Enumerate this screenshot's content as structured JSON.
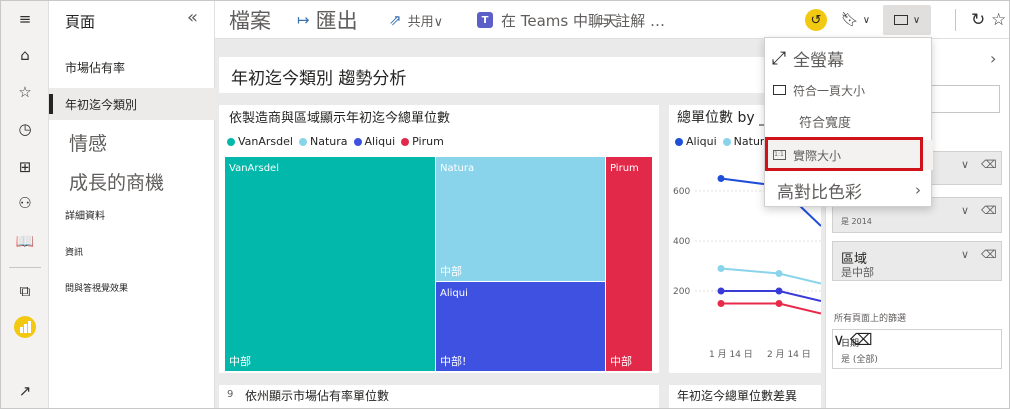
{
  "pages_pane": {
    "title": "頁面",
    "items": [
      {
        "label": "市場佔有率"
      },
      {
        "label": "年初迄今類別"
      },
      {
        "label": "情感"
      },
      {
        "label": "成長的商機"
      },
      {
        "label": "詳細資料"
      },
      {
        "label": "資訊"
      },
      {
        "label": "問與答視覺效果"
      }
    ]
  },
  "toolbar": {
    "file_label": "檔案",
    "export_label": "匯出",
    "share_label": "共用∨",
    "teams_label": "在 Teams 中聊天",
    "comment_label": "註解 …"
  },
  "view_menu": {
    "items": [
      {
        "label": "全螢幕"
      },
      {
        "label": "符合一頁大小"
      },
      {
        "label": "符合寬度"
      },
      {
        "label": "實際大小"
      },
      {
        "label": "高對比色彩"
      }
    ]
  },
  "report": {
    "title": "年初迄今類別 趨勢分析",
    "treemap": {
      "title": "依製造商與區域顯示年初迄今總單位數",
      "region_label": "中部",
      "region_label_cut": "中部!"
    },
    "line_visual": {
      "title": "總單位數 by _"
    },
    "bottom_left_title": "依州顯示市場佔有率單位數",
    "bottom_left_icon": "9",
    "bottom_right_title": "年初迄今總單位數差異"
  },
  "chart_data": {
    "type": "line",
    "title": "總單位數 by _",
    "x": [
      "1 月 14 日",
      "2 月 14 日"
    ],
    "y_ticks": [
      600,
      400,
      200
    ],
    "series": [
      {
        "name": "Aliqui",
        "color": "#1f4fd9",
        "values": [
          650,
          620
        ]
      },
      {
        "name": "Natura",
        "color": "#8ad4eb",
        "values": [
          290,
          270
        ]
      },
      {
        "name": "",
        "color": "#3a3ad8",
        "values": [
          200,
          200
        ]
      },
      {
        "name": "",
        "color": "#e82a4a",
        "values": [
          150,
          150
        ]
      }
    ]
  },
  "treemap_data": {
    "legend": [
      {
        "name": "VanArsdel",
        "color": "#01b8aa"
      },
      {
        "name": "Natura",
        "color": "#8ad4eb"
      },
      {
        "name": "Aliqui",
        "color": "#3f51e0"
      },
      {
        "name": "Pirum",
        "color": "#e3294a"
      }
    ],
    "tiles": [
      {
        "name": "VanArsdel",
        "color": "#01b8aa"
      },
      {
        "name": "Natura",
        "color": "#8ad4eb"
      },
      {
        "name": "Aliqui",
        "color": "#3f51e0"
      },
      {
        "name": "Pirum",
        "color": "#e3294a"
      }
    ]
  },
  "filters": {
    "card2_value": "是 2014",
    "region_title": "區域",
    "region_value": "是中部",
    "all_pages_label": "所有頁面上的篩選",
    "date_title": "日期",
    "date_value": "是 (全部)"
  },
  "colors": {
    "accent_yellow": "#f2c811",
    "highlight_red": "#d0121b",
    "teams_purple": "#5b5fc7"
  }
}
